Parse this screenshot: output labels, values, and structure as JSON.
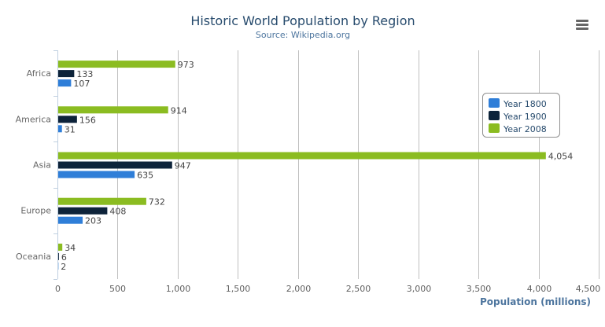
{
  "chart_data": {
    "type": "bar",
    "orientation": "horizontal",
    "title": "Historic World Population by Region",
    "subtitle": "Source: Wikipedia.org",
    "categories": [
      "Africa",
      "America",
      "Asia",
      "Europe",
      "Oceania"
    ],
    "series": [
      {
        "name": "Year 1800",
        "color": "#2f7ed8",
        "values": [
          107,
          31,
          635,
          203,
          2
        ]
      },
      {
        "name": "Year 1900",
        "color": "#0d233a",
        "values": [
          133,
          156,
          947,
          408,
          6
        ]
      },
      {
        "name": "Year 2008",
        "color": "#8bbc21",
        "values": [
          973,
          914,
          4054,
          732,
          34
        ]
      }
    ],
    "xlabel": "Population (millions)",
    "xlim": [
      0,
      4500
    ],
    "ticks": [
      0,
      500,
      1000,
      1500,
      2000,
      2500,
      3000,
      3500,
      4000,
      4500
    ],
    "tick_labels": [
      "0",
      "500",
      "1,000",
      "1,500",
      "2,000",
      "2,500",
      "3,000",
      "3,500",
      "4,000",
      "4,500"
    ],
    "grid": true,
    "data_labels": true,
    "legend_placement": "top-right"
  },
  "menu_icon": "hamburger-menu-icon"
}
